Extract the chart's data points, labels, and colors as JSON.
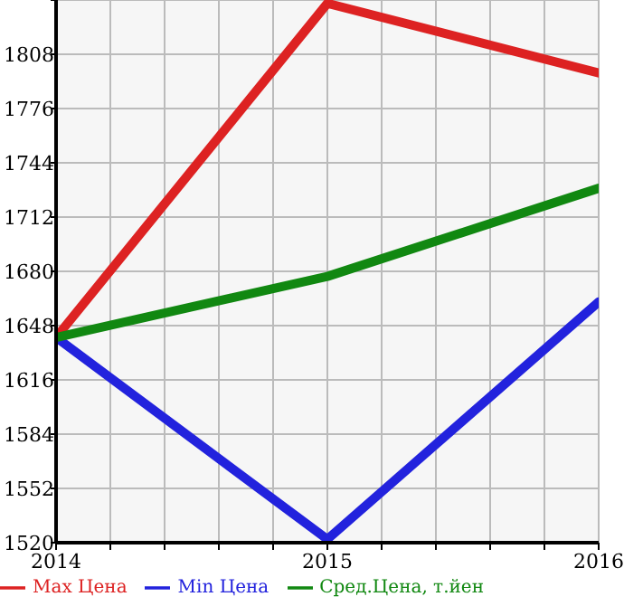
{
  "chart_data": {
    "type": "line",
    "x": [
      2014,
      2015,
      2016
    ],
    "series": [
      {
        "name": "Max Цена",
        "color": "#dd2222",
        "values": [
          1641,
          1838,
          1797
        ]
      },
      {
        "name": "Min Цена",
        "color": "#2222dd",
        "values": [
          1641,
          1522,
          1662
        ]
      },
      {
        "name": "Сред.Цена, т.йен",
        "color": "#118811",
        "values": [
          1641,
          1677,
          1729
        ]
      }
    ],
    "xlim": [
      2014,
      2016
    ],
    "xticks": [
      2014,
      {
        "value": 2014.2,
        "label": null
      },
      {
        "value": 2014.4,
        "label": null
      },
      {
        "value": 2014.6,
        "label": null
      },
      {
        "value": 2014.8,
        "label": null
      },
      2015,
      {
        "value": 2015.2,
        "label": null
      },
      {
        "value": 2015.4,
        "label": null
      },
      {
        "value": 2015.6,
        "label": null
      },
      {
        "value": 2015.8,
        "label": null
      },
      2016
    ],
    "ylim": [
      1520,
      1840
    ],
    "yticks": [
      1520,
      1552,
      1584,
      1616,
      1648,
      1680,
      1712,
      1744,
      1776,
      1808,
      {
        "value": 1840,
        "label": null
      }
    ],
    "grid": true,
    "legend": "bottom",
    "marker": "none",
    "line_style": "solid"
  }
}
